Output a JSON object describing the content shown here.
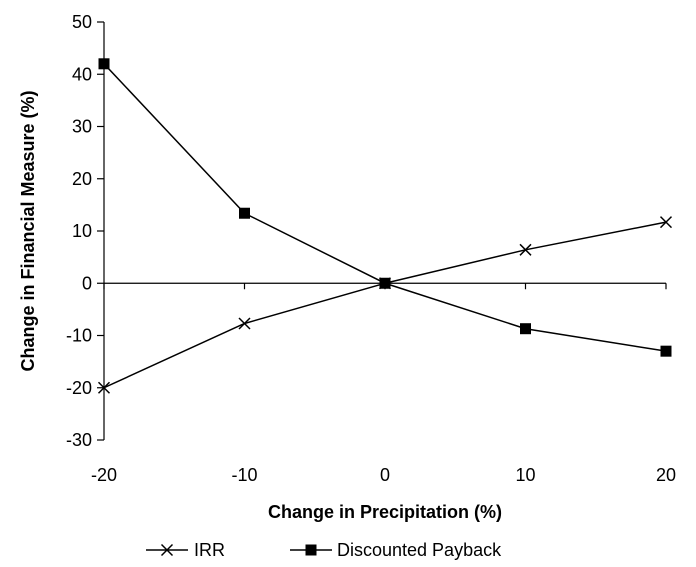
{
  "chart_data": {
    "type": "line",
    "title": "",
    "xlabel": "Change in Precipitation (%)",
    "ylabel": "Change in Financial Measure (%)",
    "x": [
      -20,
      -10,
      0,
      10,
      20
    ],
    "xlim": [
      -20,
      20
    ],
    "ylim": [
      -30,
      50
    ],
    "xticks": [
      "-20",
      "-10",
      "0",
      "10",
      "20"
    ],
    "yticks": [
      "50",
      "40",
      "30",
      "20",
      "10",
      "0",
      "-10",
      "-20",
      "-30"
    ],
    "grid": false,
    "legend_position": "bottom",
    "series": [
      {
        "name": "IRR",
        "marker": "x",
        "color": "#000000",
        "values": [
          -20,
          -7.7,
          0,
          6.4,
          11.7
        ]
      },
      {
        "name": "Discounted Payback",
        "marker": "square",
        "color": "#000000",
        "values": [
          42,
          13.4,
          0,
          -8.7,
          -13
        ]
      }
    ]
  }
}
